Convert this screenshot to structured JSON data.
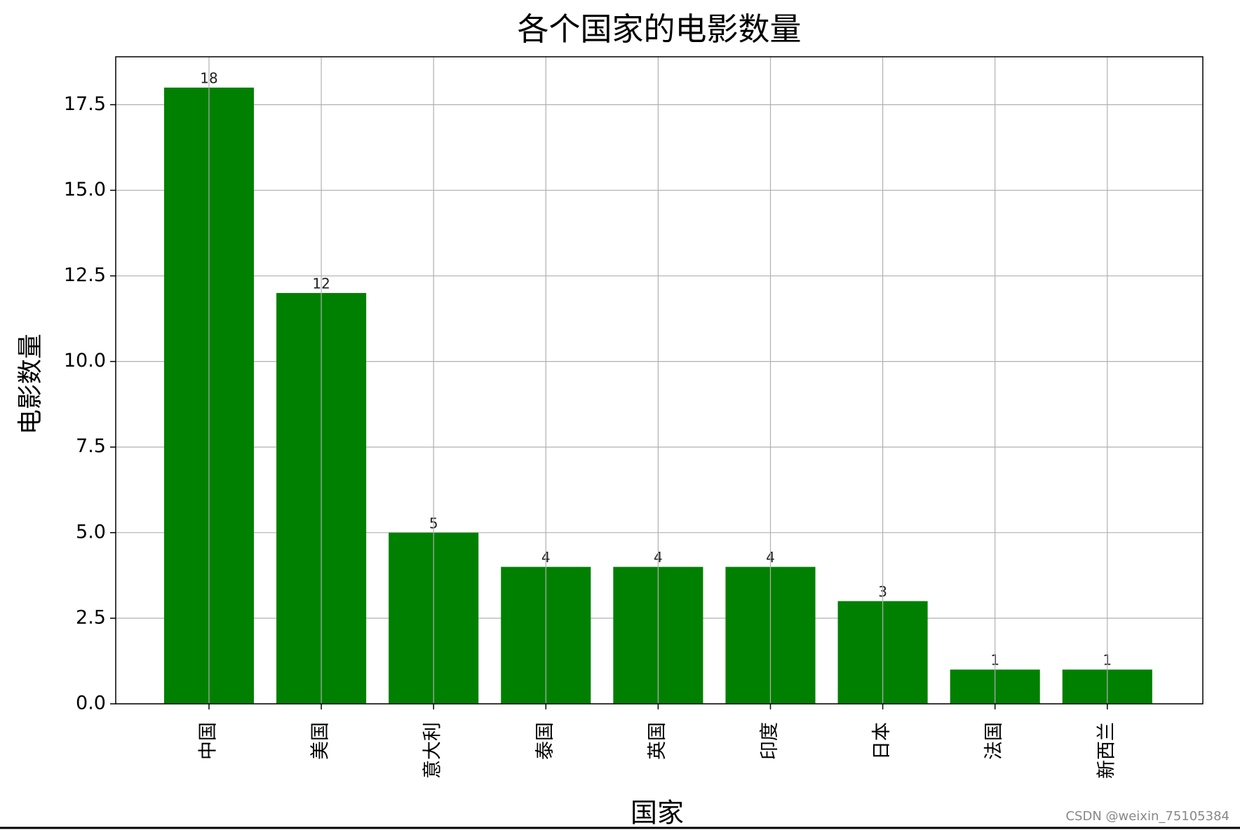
{
  "chart_data": {
    "type": "bar",
    "title": "各个国家的电影数量",
    "x_label": "国家",
    "y_label": "电影数量",
    "categories": [
      "中国",
      "美国",
      "意大利",
      "泰国",
      "英国",
      "印度",
      "日本",
      "法国",
      "新西兰"
    ],
    "values": [
      18,
      12,
      5,
      4,
      4,
      4,
      3,
      1,
      1
    ],
    "color": "#008000",
    "ylim": [
      0,
      18.9
    ],
    "yticks": [
      {
        "value": 0,
        "label": "0.0"
      },
      2.5,
      {
        "value": 5,
        "label": "5.0"
      },
      7.5,
      {
        "value": 10,
        "label": "10.0"
      },
      12.5,
      {
        "value": 15,
        "label": "15.0"
      },
      17.5
    ],
    "grid": true,
    "watermark": "CSDN @weixin_75105384"
  }
}
